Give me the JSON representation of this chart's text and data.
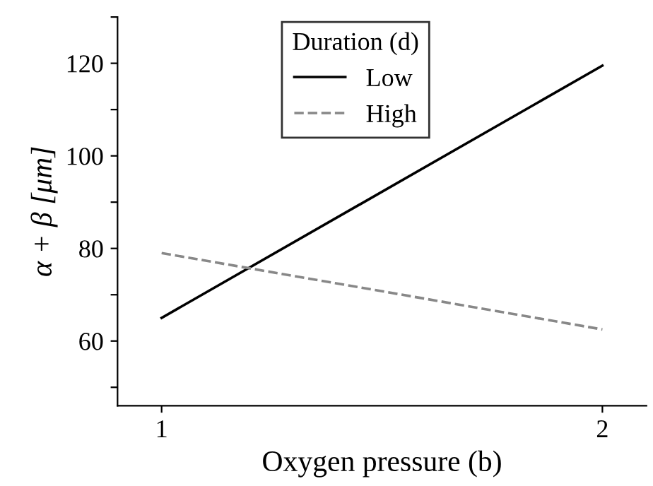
{
  "chart_data": {
    "type": "line",
    "xlabel": "Oxygen pressure (b)",
    "ylabel": "α + β [μm]",
    "legend_title": "Duration (d)",
    "x": [
      1,
      2
    ],
    "series": [
      {
        "name": "Low",
        "color": "#000000",
        "values": [
          65,
          119.5
        ],
        "line_style": "solid"
      },
      {
        "name": "High",
        "color": "#888888",
        "values": [
          79,
          62.5
        ],
        "line_style": "dashed"
      }
    ],
    "xlim": [
      0.9,
      2.1
    ],
    "xticks": [
      1,
      2
    ],
    "ylim": [
      46,
      130
    ],
    "yticks": [
      {
        "value": 50,
        "label": null
      },
      60,
      {
        "value": 70,
        "label": null
      },
      80,
      {
        "value": 90,
        "label": null
      },
      100,
      {
        "value": 110,
        "label": null
      },
      120,
      {
        "value": 130,
        "label": null
      }
    ],
    "grid": false,
    "legend": "top",
    "marker": "none"
  }
}
